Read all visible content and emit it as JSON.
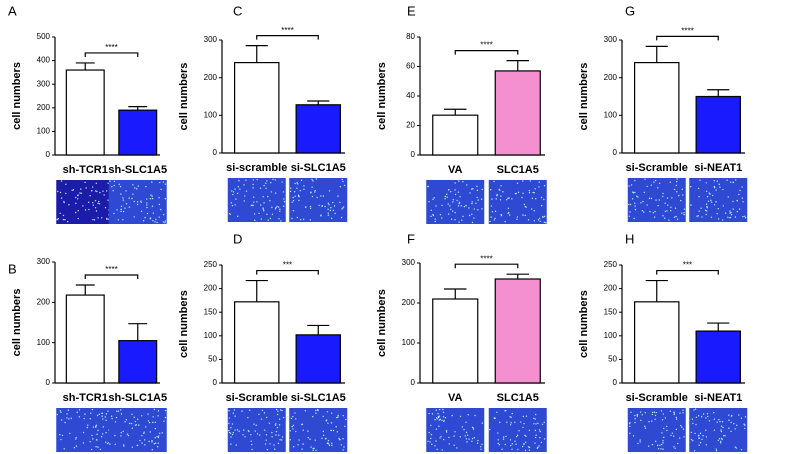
{
  "chart_data": [
    {
      "type": "bar",
      "panel_label": "A",
      "ylabel": "cell numbers",
      "categories": [
        "sh-TCR1",
        "sh-SLC1A5"
      ],
      "values": [
        360,
        190
      ],
      "errors": [
        30,
        15
      ],
      "colors": [
        "#ffffff",
        "#1a1aff"
      ],
      "significance": "****",
      "ylim": [
        0,
        500
      ],
      "yticks": [
        0,
        100,
        200,
        300,
        400,
        500
      ]
    },
    {
      "type": "bar",
      "panel_label": "B",
      "ylabel": "cell numbers",
      "categories": [
        "sh-TCR1",
        "sh-SLC1A5"
      ],
      "values": [
        218,
        105
      ],
      "errors": [
        25,
        42
      ],
      "colors": [
        "#ffffff",
        "#1a1aff"
      ],
      "significance": "****",
      "ylim": [
        0,
        300
      ],
      "yticks": [
        0,
        100,
        200,
        300
      ]
    },
    {
      "type": "bar",
      "panel_label": "C",
      "ylabel": "cell numbers",
      "categories": [
        "si-scramble",
        "si-SLC1A5"
      ],
      "values": [
        240,
        128
      ],
      "errors": [
        45,
        10
      ],
      "colors": [
        "#ffffff",
        "#1a1aff"
      ],
      "significance": "****",
      "ylim": [
        0,
        300
      ],
      "yticks": [
        0,
        100,
        200,
        300
      ]
    },
    {
      "type": "bar",
      "panel_label": "D",
      "ylabel": "cell numbers",
      "categories": [
        "si-Scramble",
        "si-SLC1A5"
      ],
      "values": [
        172,
        102
      ],
      "errors": [
        45,
        20
      ],
      "colors": [
        "#ffffff",
        "#1a1aff"
      ],
      "significance": "***",
      "ylim": [
        0,
        250
      ],
      "yticks": [
        0,
        50,
        100,
        150,
        200,
        250
      ]
    },
    {
      "type": "bar",
      "panel_label": "E",
      "ylabel": "cell numbers",
      "categories": [
        "VA",
        "SLC1A5"
      ],
      "values": [
        27,
        57
      ],
      "errors": [
        4,
        7
      ],
      "colors": [
        "#ffffff",
        "#f48fd0"
      ],
      "significance": "****",
      "ylim": [
        0,
        80
      ],
      "yticks": [
        0,
        20,
        40,
        60,
        80
      ]
    },
    {
      "type": "bar",
      "panel_label": "F",
      "ylabel": "cell numbers",
      "categories": [
        "VA",
        "SLC1A5"
      ],
      "values": [
        210,
        260
      ],
      "errors": [
        25,
        12
      ],
      "colors": [
        "#ffffff",
        "#f48fd0"
      ],
      "significance": "****",
      "ylim": [
        0,
        300
      ],
      "yticks": [
        0,
        100,
        200,
        300
      ]
    },
    {
      "type": "bar",
      "panel_label": "G",
      "ylabel": "cell numbers",
      "categories": [
        "si-Scramble",
        "si-NEAT1"
      ],
      "values": [
        240,
        150
      ],
      "errors": [
        43,
        18
      ],
      "colors": [
        "#ffffff",
        "#1a1aff"
      ],
      "significance": "****",
      "ylim": [
        0,
        300
      ],
      "yticks": [
        0,
        100,
        200,
        300
      ]
    },
    {
      "type": "bar",
      "panel_label": "H",
      "ylabel": "cell numbers",
      "categories": [
        "si-Scramble",
        "si-NEAT1"
      ],
      "values": [
        172,
        110
      ],
      "errors": [
        45,
        17
      ],
      "colors": [
        "#ffffff",
        "#1a1aff"
      ],
      "significance": "***",
      "ylim": [
        0,
        250
      ],
      "yticks": [
        0,
        50,
        100,
        150,
        200,
        250
      ]
    }
  ]
}
